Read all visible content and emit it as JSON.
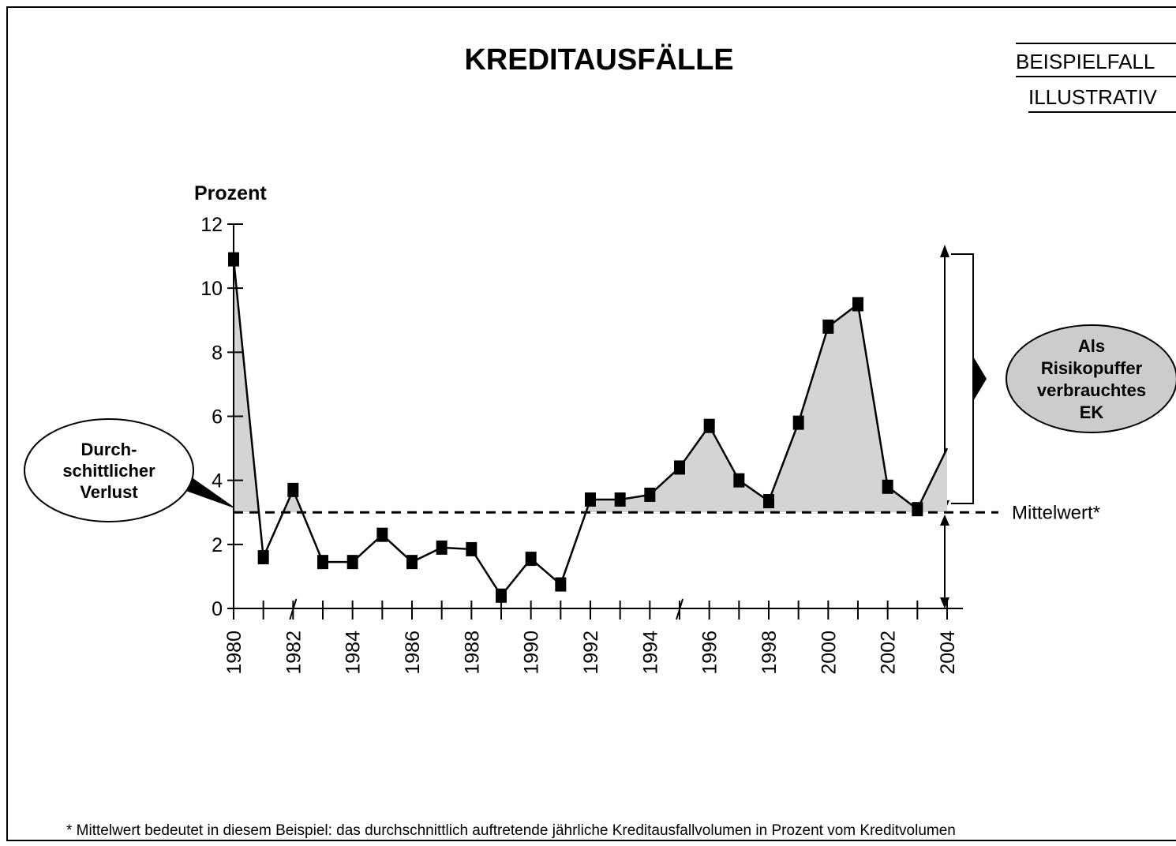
{
  "chart_data": {
    "type": "line",
    "title": "KREDITAUSFÄLLE",
    "stamps": [
      "BEISPIELFALL",
      "ILLUSTRATIV"
    ],
    "y_label": "Prozent",
    "x": [
      1980,
      1981,
      1982,
      1983,
      1984,
      1985,
      1986,
      1987,
      1988,
      1989,
      1990,
      1991,
      1992,
      1993,
      1994,
      1995,
      1996,
      1997,
      1998,
      1999,
      2000,
      2001,
      2002,
      2003,
      2004
    ],
    "series": [
      {
        "color": "#000000",
        "values": [
          10.9,
          1.6,
          3.7,
          1.45,
          1.45,
          2.3,
          1.45,
          1.9,
          1.85,
          0.4,
          1.55,
          0.75,
          3.4,
          3.4,
          3.55,
          4.4,
          5.7,
          4.0,
          3.35,
          5.8,
          8.8,
          9.5,
          3.8,
          3.1,
          5.0
        ]
      }
    ],
    "mean": {
      "value": 3.0,
      "label": "Mittelwert*"
    },
    "fill_color": "#d4d4d4",
    "xlim": [
      1980,
      2004
    ],
    "xticks": [
      1980,
      1982,
      1984,
      1986,
      1988,
      1990,
      1992,
      1994,
      1996,
      1998,
      2000,
      2002,
      2004
    ],
    "ylim": [
      0,
      12
    ],
    "yticks": [
      0,
      2,
      4,
      6,
      8,
      10,
      12
    ],
    "callouts": [
      [
        "Durch-",
        "schittlicher",
        "Verlust"
      ],
      [
        "Als",
        "Risikopuffer",
        "verbrauchtes",
        "EK"
      ]
    ],
    "footnote": "* Mittelwert bedeutet in diesem Beispiel: das durchschnittlich auftretende jährliche Kreditausfallvolumen in Prozent vom Kreditvolumen"
  }
}
